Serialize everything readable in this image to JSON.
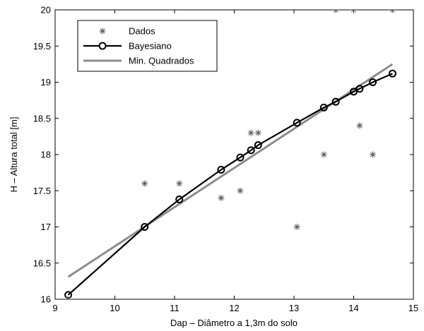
{
  "chart_data": {
    "type": "line",
    "xlabel": "Dap – Diâmetro a 1,3m do solo",
    "ylabel": "H – Altura total [m]",
    "xlim": [
      9,
      15
    ],
    "ylim": [
      16,
      20
    ],
    "xticks": [
      "9",
      "10",
      "11",
      "12",
      "13",
      "14",
      "15"
    ],
    "yticks": [
      "16",
      "16.5",
      "17",
      "17.5",
      "18",
      "18.5",
      "19",
      "19.5",
      "20"
    ],
    "grid": false,
    "legend_position": "top-left",
    "series": [
      {
        "name": "Dados",
        "style": "markers",
        "marker": "asterisk",
        "color": "#555555",
        "x": [
          9.22,
          10.5,
          11.08,
          11.78,
          12.1,
          12.28,
          12.4,
          13.05,
          13.5,
          13.7,
          14.0,
          14.1,
          14.32,
          14.65
        ],
        "y": [
          16.0,
          17.6,
          17.6,
          17.4,
          17.5,
          18.3,
          18.3,
          17.0,
          18.0,
          20.0,
          20.0,
          18.4,
          18.0,
          20.0
        ]
      },
      {
        "name": "Bayesiano",
        "style": "line-markers",
        "marker": "circle",
        "color": "#000000",
        "x": [
          9.22,
          10.5,
          11.08,
          11.78,
          12.1,
          12.28,
          12.4,
          13.05,
          13.5,
          13.7,
          14.0,
          14.1,
          14.32,
          14.65
        ],
        "y": [
          16.06,
          17.0,
          17.38,
          17.79,
          17.96,
          18.06,
          18.13,
          18.44,
          18.65,
          18.73,
          18.87,
          18.91,
          19.0,
          19.12
        ]
      },
      {
        "name": "Min. Quadrados",
        "style": "line",
        "color": "#8c8c8c",
        "x": [
          9.22,
          14.65
        ],
        "y": [
          16.31,
          19.25
        ]
      }
    ]
  }
}
